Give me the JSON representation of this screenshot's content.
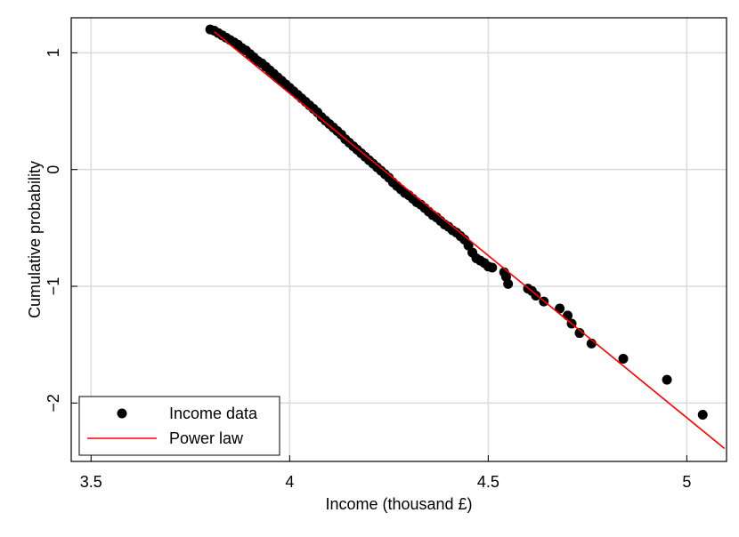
{
  "chart_data": {
    "type": "scatter",
    "title": "",
    "xlabel": "Income (thousand £)",
    "ylabel": "Cumulative probability",
    "xlim": [
      3.45,
      5.1
    ],
    "ylim": [
      -2.5,
      1.3
    ],
    "xticks": [
      3.5,
      4,
      4.5,
      5
    ],
    "xtick_labels": [
      "3.5",
      "4",
      "4.5",
      "5"
    ],
    "yticks": [
      1,
      0,
      -1,
      -2
    ],
    "ytick_labels": [
      "1",
      "0",
      "−1",
      "−2"
    ],
    "grid": true,
    "legend": {
      "position": "bottom-left",
      "entries": [
        "Income data",
        "Power law"
      ]
    },
    "series": [
      {
        "name": "Income data",
        "kind": "scatter",
        "color": "#000000",
        "points": [
          [
            3.8,
            1.2
          ],
          [
            3.81,
            1.19
          ],
          [
            3.82,
            1.17
          ],
          [
            3.83,
            1.15
          ],
          [
            3.84,
            1.13
          ],
          [
            3.85,
            1.11
          ],
          [
            3.86,
            1.09
          ],
          [
            3.87,
            1.07
          ],
          [
            3.88,
            1.04
          ],
          [
            3.89,
            1.02
          ],
          [
            3.9,
            0.99
          ],
          [
            3.91,
            0.96
          ],
          [
            3.92,
            0.93
          ],
          [
            3.93,
            0.91
          ],
          [
            3.94,
            0.88
          ],
          [
            3.95,
            0.85
          ],
          [
            3.96,
            0.82
          ],
          [
            3.97,
            0.79
          ],
          [
            3.98,
            0.76
          ],
          [
            3.99,
            0.73
          ],
          [
            4.0,
            0.7
          ],
          [
            4.01,
            0.67
          ],
          [
            4.02,
            0.64
          ],
          [
            4.03,
            0.61
          ],
          [
            4.04,
            0.58
          ],
          [
            4.05,
            0.55
          ],
          [
            4.06,
            0.52
          ],
          [
            4.07,
            0.49
          ],
          [
            4.08,
            0.45
          ],
          [
            4.09,
            0.42
          ],
          [
            4.1,
            0.39
          ],
          [
            4.11,
            0.36
          ],
          [
            4.12,
            0.33
          ],
          [
            4.13,
            0.3
          ],
          [
            4.14,
            0.26
          ],
          [
            4.15,
            0.23
          ],
          [
            4.16,
            0.2
          ],
          [
            4.17,
            0.17
          ],
          [
            4.18,
            0.14
          ],
          [
            4.19,
            0.11
          ],
          [
            4.2,
            0.08
          ],
          [
            4.21,
            0.05
          ],
          [
            4.22,
            0.02
          ],
          [
            4.23,
            -0.01
          ],
          [
            4.24,
            -0.04
          ],
          [
            4.25,
            -0.07
          ],
          [
            4.26,
            -0.11
          ],
          [
            4.27,
            -0.14
          ],
          [
            4.28,
            -0.17
          ],
          [
            4.29,
            -0.2
          ],
          [
            4.3,
            -0.22
          ],
          [
            4.31,
            -0.25
          ],
          [
            4.32,
            -0.28
          ],
          [
            4.33,
            -0.3
          ],
          [
            4.34,
            -0.33
          ],
          [
            4.35,
            -0.36
          ],
          [
            4.36,
            -0.39
          ],
          [
            4.37,
            -0.41
          ],
          [
            4.38,
            -0.44
          ],
          [
            4.39,
            -0.47
          ],
          [
            4.4,
            -0.49
          ],
          [
            4.41,
            -0.52
          ],
          [
            4.42,
            -0.54
          ],
          [
            4.43,
            -0.57
          ],
          [
            4.44,
            -0.6
          ],
          [
            4.45,
            -0.65
          ],
          [
            4.46,
            -0.71
          ],
          [
            4.47,
            -0.76
          ],
          [
            4.48,
            -0.78
          ],
          [
            4.49,
            -0.8
          ],
          [
            4.5,
            -0.83
          ],
          [
            4.51,
            -0.84
          ],
          [
            4.54,
            -0.88
          ],
          [
            4.545,
            -0.92
          ],
          [
            4.55,
            -0.98
          ],
          [
            4.6,
            -1.02
          ],
          [
            4.61,
            -1.04
          ],
          [
            4.62,
            -1.08
          ],
          [
            4.64,
            -1.13
          ],
          [
            4.68,
            -1.19
          ],
          [
            4.7,
            -1.25
          ],
          [
            4.71,
            -1.32
          ],
          [
            4.73,
            -1.4
          ],
          [
            4.76,
            -1.49
          ],
          [
            4.84,
            -1.62
          ],
          [
            4.95,
            -1.8
          ],
          [
            5.04,
            -2.1
          ]
        ]
      },
      {
        "name": "Power law",
        "kind": "line",
        "color": "#ff0000",
        "points": [
          [
            3.81,
            1.18
          ],
          [
            5.095,
            -2.39
          ]
        ]
      }
    ]
  }
}
